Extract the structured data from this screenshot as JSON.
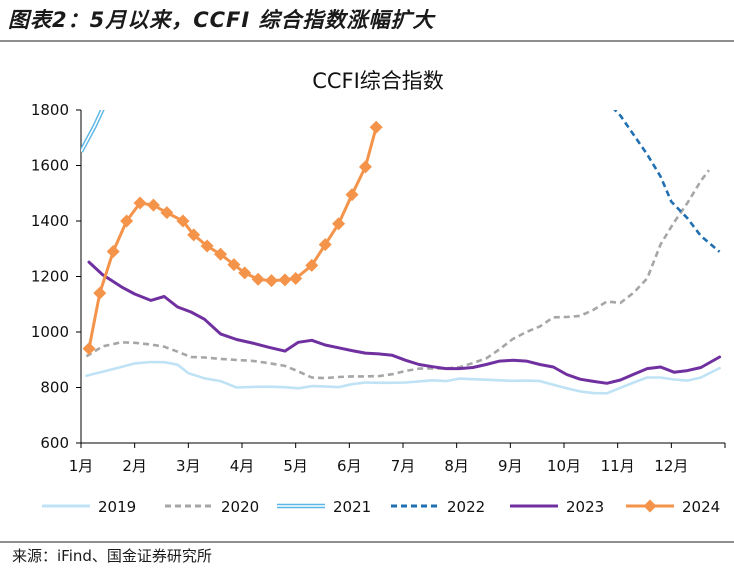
{
  "figure_title": "图表2：5月以来，CCFI 综合指数涨幅扩大",
  "source": "来源：iFind、国金证券研究所",
  "chart_data": {
    "type": "line",
    "title": "CCFI综合指数",
    "xlabel": "",
    "ylabel": "",
    "ylim": [
      600,
      1800
    ],
    "yticks": [
      600,
      800,
      1000,
      1200,
      1400,
      1600,
      1800
    ],
    "xlim": [
      1,
      13
    ],
    "categories": [
      "1月",
      "2月",
      "3月",
      "4月",
      "5月",
      "6月",
      "7月",
      "8月",
      "9月",
      "10月",
      "11月",
      "12月"
    ],
    "grid": false,
    "legend_position": "bottom",
    "series": [
      {
        "name": "2019",
        "color": "#bfe3f5",
        "style": "solid",
        "markers": false,
        "points": [
          [
            1.1,
            842
          ],
          [
            1.4,
            857
          ],
          [
            1.75,
            874
          ],
          [
            2.0,
            887
          ],
          [
            2.3,
            892
          ],
          [
            2.55,
            891
          ],
          [
            2.8,
            882
          ],
          [
            3.0,
            852
          ],
          [
            3.3,
            833
          ],
          [
            3.6,
            823
          ],
          [
            3.9,
            800
          ],
          [
            4.2,
            802
          ],
          [
            4.5,
            803
          ],
          [
            4.8,
            801
          ],
          [
            5.05,
            797
          ],
          [
            5.3,
            805
          ],
          [
            5.55,
            804
          ],
          [
            5.8,
            801
          ],
          [
            6.05,
            812
          ],
          [
            6.3,
            818
          ],
          [
            6.55,
            817
          ],
          [
            6.8,
            817
          ],
          [
            7.05,
            818
          ],
          [
            7.3,
            822
          ],
          [
            7.55,
            826
          ],
          [
            7.8,
            823
          ],
          [
            8.05,
            832
          ],
          [
            8.3,
            830
          ],
          [
            8.55,
            828
          ],
          [
            8.8,
            826
          ],
          [
            9.05,
            824
          ],
          [
            9.3,
            825
          ],
          [
            9.55,
            823
          ],
          [
            9.8,
            810
          ],
          [
            10.05,
            797
          ],
          [
            10.3,
            786
          ],
          [
            10.55,
            780
          ],
          [
            10.8,
            779
          ],
          [
            11.05,
            799
          ],
          [
            11.3,
            818
          ],
          [
            11.55,
            836
          ],
          [
            11.8,
            836
          ],
          [
            12.05,
            829
          ],
          [
            12.3,
            825
          ],
          [
            12.55,
            836
          ],
          [
            12.9,
            870
          ]
        ]
      },
      {
        "name": "2020",
        "color": "#a6a6a6",
        "style": "dash",
        "markers": false,
        "points": [
          [
            1.1,
            912
          ],
          [
            1.4,
            948
          ],
          [
            1.75,
            963
          ],
          [
            2.0,
            961
          ],
          [
            2.3,
            955
          ],
          [
            2.55,
            947
          ],
          [
            2.8,
            929
          ],
          [
            3.05,
            910
          ],
          [
            3.3,
            908
          ],
          [
            3.6,
            903
          ],
          [
            3.9,
            899
          ],
          [
            4.2,
            896
          ],
          [
            4.5,
            888
          ],
          [
            4.8,
            878
          ],
          [
            5.05,
            858
          ],
          [
            5.3,
            836
          ],
          [
            5.55,
            834
          ],
          [
            5.8,
            838
          ],
          [
            6.05,
            840
          ],
          [
            6.3,
            840
          ],
          [
            6.55,
            841
          ],
          [
            6.8,
            848
          ],
          [
            7.05,
            860
          ],
          [
            7.3,
            868
          ],
          [
            7.55,
            869
          ],
          [
            7.8,
            869
          ],
          [
            8.05,
            873
          ],
          [
            8.3,
            888
          ],
          [
            8.55,
            905
          ],
          [
            8.8,
            938
          ],
          [
            9.05,
            975
          ],
          [
            9.3,
            1000
          ],
          [
            9.55,
            1020
          ],
          [
            9.8,
            1053
          ],
          [
            10.05,
            1054
          ],
          [
            10.3,
            1058
          ],
          [
            10.55,
            1080
          ],
          [
            10.8,
            1110
          ],
          [
            11.05,
            1105
          ],
          [
            11.3,
            1142
          ],
          [
            11.55,
            1193
          ],
          [
            11.8,
            1316
          ],
          [
            12.05,
            1395
          ],
          [
            12.3,
            1465
          ],
          [
            12.55,
            1545
          ],
          [
            12.7,
            1583
          ]
        ]
      },
      {
        "name": "2021",
        "color": "#5bb7e6",
        "style": "double",
        "markers": false,
        "points": [
          [
            1.0,
            1650
          ],
          [
            1.25,
            1740
          ],
          [
            1.42,
            1810
          ]
        ]
      },
      {
        "name": "2022",
        "color": "#1f6fb2",
        "style": "dash",
        "markers": false,
        "points": [
          [
            10.9,
            1810
          ],
          [
            11.05,
            1780
          ],
          [
            11.3,
            1710
          ],
          [
            11.55,
            1640
          ],
          [
            11.8,
            1560
          ],
          [
            12.0,
            1470
          ],
          [
            12.3,
            1410
          ],
          [
            12.55,
            1346
          ],
          [
            12.9,
            1289
          ]
        ]
      },
      {
        "name": "2023",
        "color": "#7030a0",
        "style": "solid",
        "markers": false,
        "points": [
          [
            1.15,
            1252
          ],
          [
            1.4,
            1207
          ],
          [
            1.75,
            1163
          ],
          [
            2.0,
            1137
          ],
          [
            2.3,
            1114
          ],
          [
            2.55,
            1128
          ],
          [
            2.8,
            1090
          ],
          [
            3.05,
            1072
          ],
          [
            3.3,
            1046
          ],
          [
            3.6,
            993
          ],
          [
            3.9,
            973
          ],
          [
            4.2,
            960
          ],
          [
            4.5,
            945
          ],
          [
            4.8,
            931
          ],
          [
            5.05,
            963
          ],
          [
            5.3,
            970
          ],
          [
            5.55,
            953
          ],
          [
            5.8,
            943
          ],
          [
            6.05,
            933
          ],
          [
            6.3,
            924
          ],
          [
            6.55,
            921
          ],
          [
            6.8,
            916
          ],
          [
            7.05,
            898
          ],
          [
            7.3,
            883
          ],
          [
            7.55,
            875
          ],
          [
            7.8,
            868
          ],
          [
            8.05,
            868
          ],
          [
            8.3,
            872
          ],
          [
            8.55,
            883
          ],
          [
            8.8,
            895
          ],
          [
            9.05,
            898
          ],
          [
            9.3,
            895
          ],
          [
            9.55,
            883
          ],
          [
            9.8,
            874
          ],
          [
            10.05,
            847
          ],
          [
            10.3,
            830
          ],
          [
            10.55,
            822
          ],
          [
            10.8,
            815
          ],
          [
            11.05,
            827
          ],
          [
            11.3,
            848
          ],
          [
            11.55,
            868
          ],
          [
            11.8,
            874
          ],
          [
            12.05,
            855
          ],
          [
            12.3,
            861
          ],
          [
            12.55,
            872
          ],
          [
            12.9,
            910
          ]
        ]
      },
      {
        "name": "2024",
        "color": "#f4934a",
        "style": "solid",
        "markers": true,
        "points": [
          [
            1.15,
            940
          ],
          [
            1.35,
            1140
          ],
          [
            1.6,
            1290
          ],
          [
            1.85,
            1400
          ],
          [
            2.1,
            1465
          ],
          [
            2.35,
            1457
          ],
          [
            2.6,
            1430
          ],
          [
            2.9,
            1400
          ],
          [
            3.1,
            1350
          ],
          [
            3.35,
            1310
          ],
          [
            3.6,
            1280
          ],
          [
            3.85,
            1243
          ],
          [
            4.05,
            1213
          ],
          [
            4.3,
            1190
          ],
          [
            4.55,
            1185
          ],
          [
            4.8,
            1188
          ],
          [
            5.0,
            1193
          ],
          [
            5.3,
            1240
          ],
          [
            5.55,
            1315
          ],
          [
            5.8,
            1390
          ],
          [
            6.05,
            1495
          ],
          [
            6.3,
            1595
          ],
          [
            6.5,
            1738
          ]
        ]
      }
    ]
  }
}
